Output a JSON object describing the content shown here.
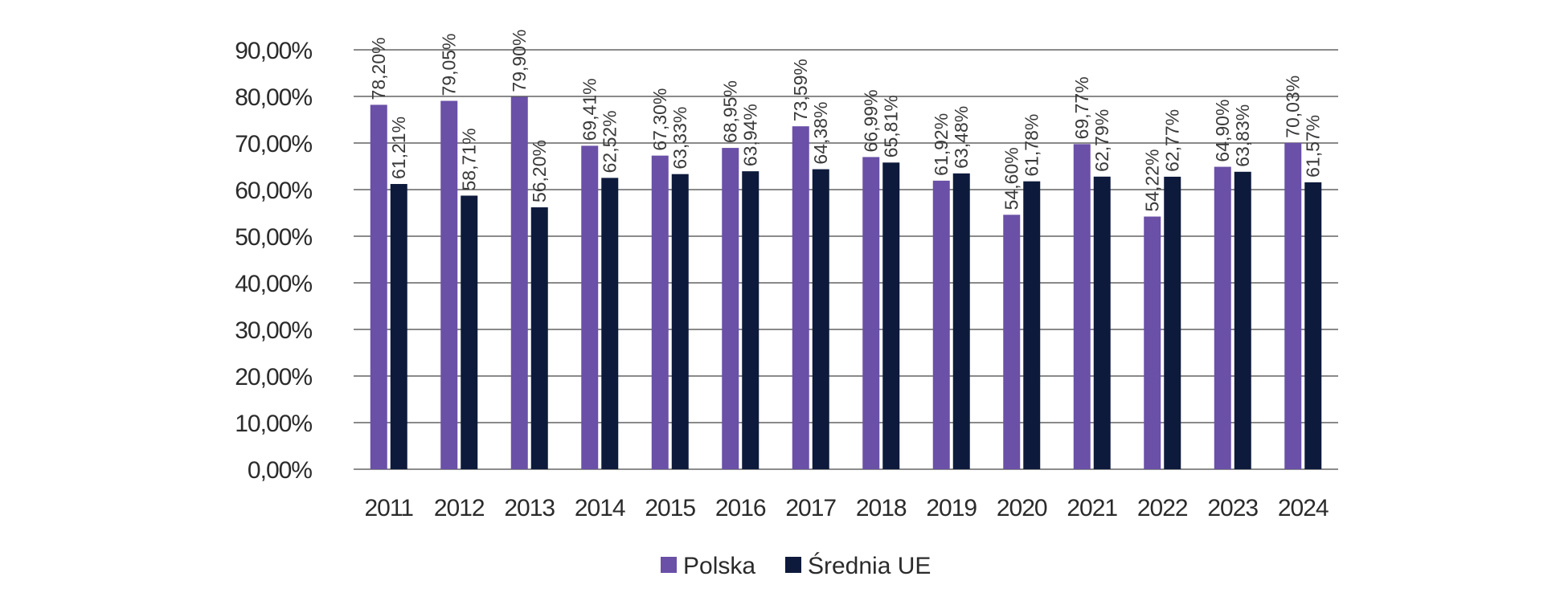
{
  "chart_data": {
    "type": "bar",
    "categories": [
      "2011",
      "2012",
      "2013",
      "2014",
      "2015",
      "2016",
      "2017",
      "2018",
      "2019",
      "2020",
      "2021",
      "2022",
      "2023",
      "2024"
    ],
    "series": [
      {
        "name": "Polska",
        "color": "#6a50a7",
        "values": [
          78.2,
          79.05,
          79.9,
          69.41,
          67.3,
          68.95,
          73.59,
          66.99,
          61.92,
          54.6,
          69.77,
          54.22,
          64.9,
          70.03
        ],
        "labels": [
          "78,20%",
          "79,05%",
          "79,90%",
          "69,41%",
          "67,30%",
          "68,95%",
          "73,59%",
          "66,99%",
          "61,92%",
          "54,60%",
          "69,77%",
          "54,22%",
          "64,90%",
          "70,03%"
        ]
      },
      {
        "name": "Średnia UE",
        "color": "#0d1a3c",
        "values": [
          61.21,
          58.71,
          56.2,
          62.52,
          63.33,
          63.94,
          64.38,
          65.81,
          63.48,
          61.78,
          62.79,
          62.77,
          63.83,
          61.57
        ],
        "labels": [
          "61,21%",
          "58,71%",
          "56,20%",
          "62,52%",
          "63,33%",
          "63,94%",
          "64,38%",
          "65,81%",
          "63,48%",
          "61,78%",
          "62,79%",
          "62,77%",
          "63,83%",
          "61,57%"
        ]
      }
    ],
    "y_ticks": [
      0,
      10,
      20,
      30,
      40,
      50,
      60,
      70,
      80,
      90
    ],
    "y_tick_labels": [
      "0,00%",
      "10,00%",
      "20,00%",
      "30,00%",
      "40,00%",
      "50,00%",
      "60,00%",
      "70,00%",
      "80,00%",
      "90,00%"
    ],
    "ylim": [
      0,
      90
    ],
    "title": "",
    "xlabel": "",
    "ylabel": "",
    "grid": true,
    "legend_position": "bottom-center"
  }
}
